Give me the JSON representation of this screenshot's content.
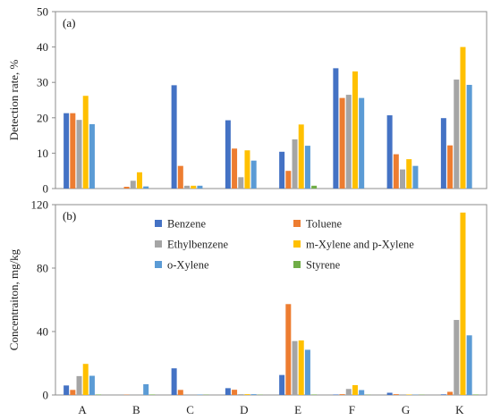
{
  "chart_data": [
    {
      "type": "bar",
      "panel": "(a)",
      "title": "",
      "xlabel": "",
      "ylabel": "Detection rate, %",
      "ylim": [
        0,
        50
      ],
      "yticks": [
        "0",
        "10",
        "20",
        "30",
        "40",
        "50"
      ],
      "grid": false,
      "categories": [
        "A",
        "B",
        "C",
        "D",
        "E",
        "F",
        "G",
        "K"
      ],
      "series": [
        {
          "name": "Benzene",
          "color": "#4472c4",
          "values": [
            21.3,
            0,
            29.2,
            19.3,
            10.4,
            34.0,
            20.7,
            19.9
          ]
        },
        {
          "name": "Toluene",
          "color": "#ed7d31",
          "values": [
            21.3,
            0.5,
            6.4,
            11.3,
            5.0,
            25.6,
            9.7,
            12.2
          ]
        },
        {
          "name": "Ethylbenzene",
          "color": "#a5a5a5",
          "values": [
            19.4,
            2.2,
            0.8,
            3.2,
            13.9,
            26.5,
            5.4,
            30.8
          ]
        },
        {
          "name": "m-Xylene and p-Xylene",
          "color": "#ffc000",
          "values": [
            26.2,
            4.6,
            0.8,
            10.8,
            18.1,
            33.1,
            8.3,
            40.0
          ]
        },
        {
          "name": "o-Xylene",
          "color": "#5b9bd5",
          "values": [
            18.2,
            0.6,
            0.8,
            7.9,
            12.1,
            25.6,
            6.4,
            29.3
          ]
        },
        {
          "name": "Styrene",
          "color": "#70ad47",
          "values": [
            0,
            0,
            0,
            0,
            0.8,
            0,
            0,
            0
          ]
        }
      ]
    },
    {
      "type": "bar",
      "panel": "(b)",
      "title": "",
      "xlabel": "",
      "ylabel": "Concentraiton, mg/kg",
      "ylim": [
        0,
        120
      ],
      "yticks": [
        "0",
        "40",
        "80",
        "120"
      ],
      "grid": false,
      "legend_position": "top-center",
      "categories": [
        "A",
        "B",
        "C",
        "D",
        "E",
        "F",
        "G",
        "K"
      ],
      "series": [
        {
          "name": "Benzene",
          "color": "#4472c4",
          "values": [
            6.0,
            0,
            16.8,
            4.3,
            12.6,
            0.3,
            1.4,
            0.4
          ]
        },
        {
          "name": "Toluene",
          "color": "#ed7d31",
          "values": [
            3.2,
            0.2,
            3.2,
            3.3,
            57.3,
            0.5,
            0.5,
            2.0
          ]
        },
        {
          "name": "Ethylbenzene",
          "color": "#a5a5a5",
          "values": [
            11.9,
            0,
            0,
            0.5,
            34.0,
            3.8,
            0,
            47.3
          ]
        },
        {
          "name": "m-Xylene and p-Xylene",
          "color": "#ffc000",
          "values": [
            19.6,
            0,
            0,
            0.5,
            34.4,
            6.2,
            0.3,
            115.0
          ]
        },
        {
          "name": "o-Xylene",
          "color": "#5b9bd5",
          "values": [
            12.1,
            6.8,
            0.3,
            0.5,
            28.5,
            3.1,
            0.2,
            37.6
          ]
        },
        {
          "name": "Styrene",
          "color": "#70ad47",
          "values": [
            0.3,
            0.3,
            0.2,
            0.2,
            0.3,
            0.2,
            0.2,
            0.3
          ]
        }
      ]
    }
  ]
}
